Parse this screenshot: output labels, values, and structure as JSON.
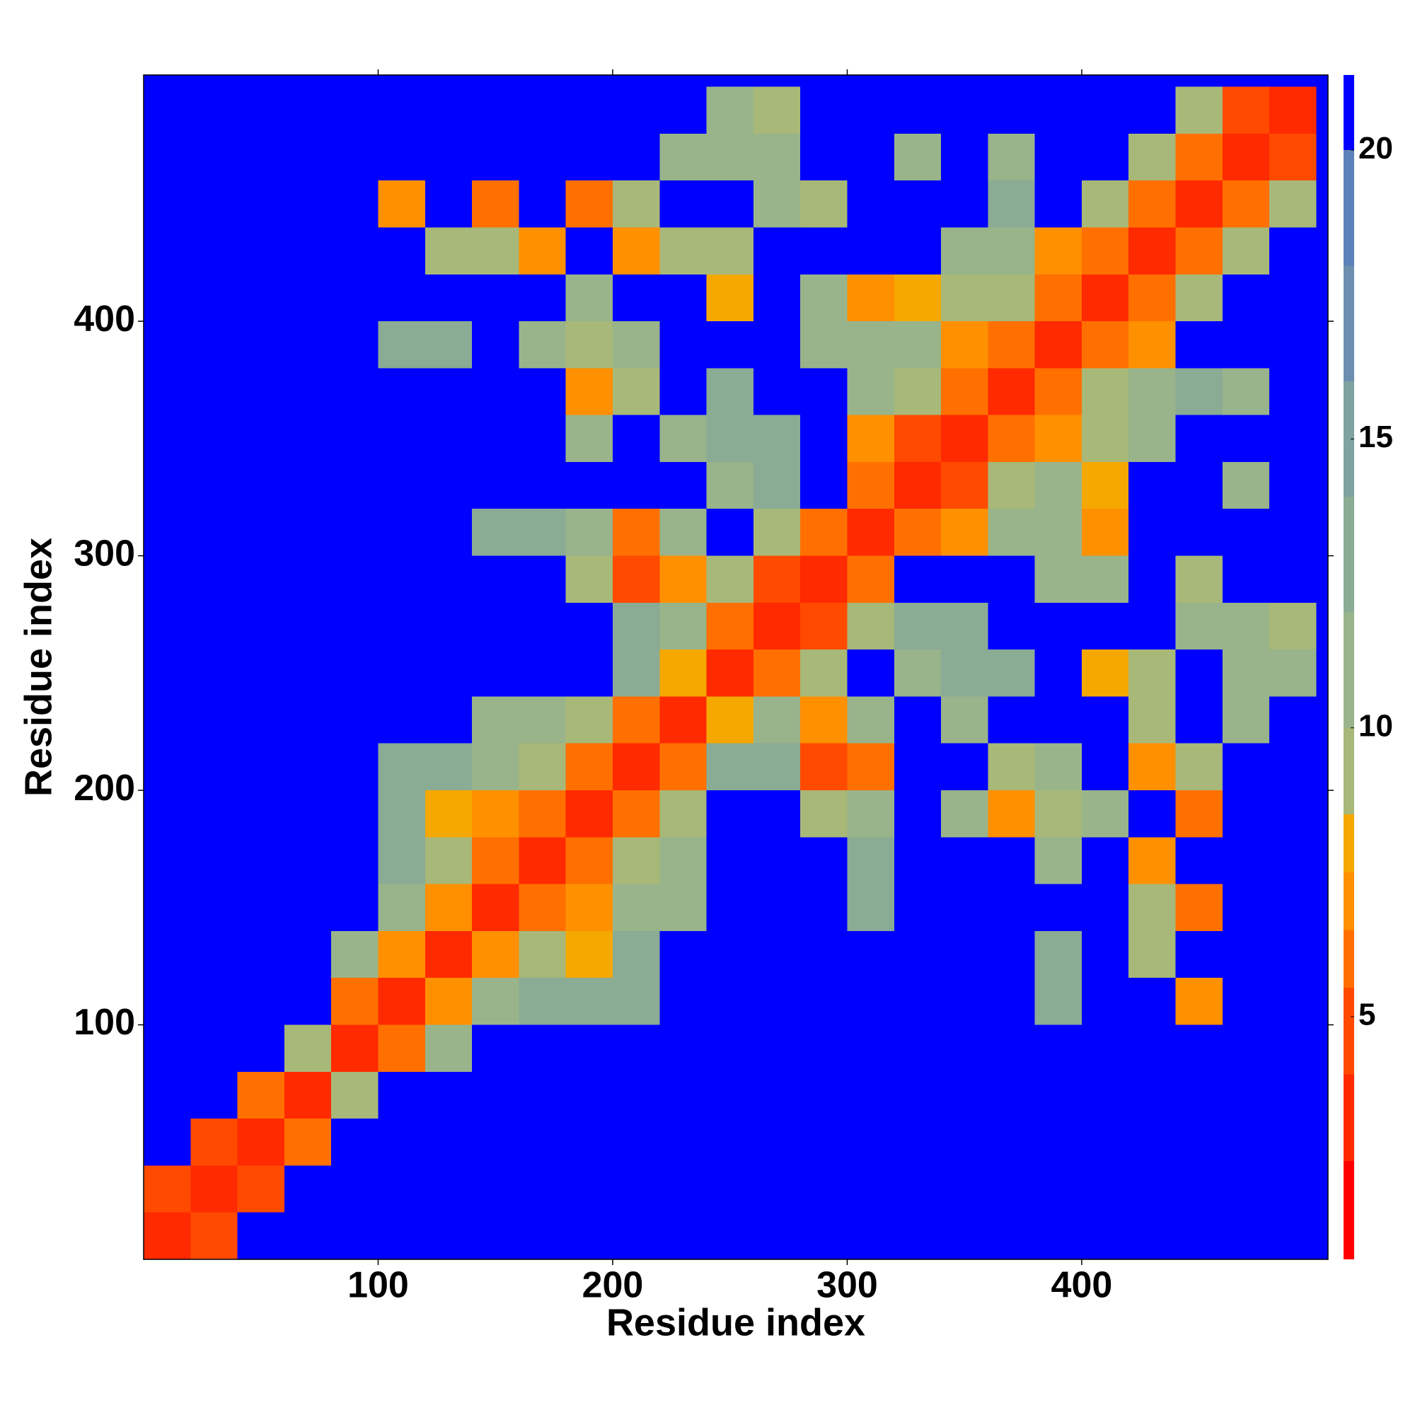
{
  "chart_data": {
    "type": "heatmap",
    "xlabel": "Residue index",
    "ylabel": "Residue index",
    "bins": [
      0,
      20,
      40,
      60,
      80,
      100,
      120,
      140,
      160,
      180,
      200,
      220,
      240,
      260,
      280,
      300,
      320,
      340,
      360,
      380,
      400,
      420,
      440,
      460,
      480,
      500
    ],
    "xlim": [
      0,
      505
    ],
    "ylim": [
      0,
      505
    ],
    "xticks": [
      100,
      200,
      300,
      400
    ],
    "yticks": [
      100,
      200,
      300,
      400
    ],
    "z": [
      [
        3,
        5,
        21,
        21,
        21,
        21,
        21,
        21,
        21,
        21,
        21,
        21,
        21,
        21,
        21,
        21,
        21,
        21,
        21,
        21,
        21,
        21,
        21,
        21,
        21
      ],
      [
        5,
        3,
        5,
        21,
        21,
        21,
        21,
        21,
        21,
        21,
        21,
        21,
        21,
        21,
        21,
        21,
        21,
        21,
        21,
        21,
        21,
        21,
        21,
        21,
        21
      ],
      [
        21,
        5,
        3,
        6,
        21,
        21,
        21,
        21,
        21,
        21,
        21,
        21,
        21,
        21,
        21,
        21,
        21,
        21,
        21,
        21,
        21,
        21,
        21,
        21,
        21
      ],
      [
        21,
        21,
        6,
        3,
        9,
        21,
        21,
        21,
        21,
        21,
        21,
        21,
        21,
        21,
        21,
        21,
        21,
        21,
        21,
        21,
        21,
        21,
        21,
        21,
        21
      ],
      [
        21,
        21,
        21,
        9,
        3,
        6,
        11,
        21,
        21,
        21,
        21,
        21,
        21,
        21,
        21,
        21,
        21,
        21,
        21,
        21,
        21,
        21,
        21,
        21,
        21
      ],
      [
        21,
        21,
        21,
        21,
        6,
        3,
        7,
        12,
        14,
        13,
        13,
        21,
        21,
        21,
        21,
        21,
        21,
        21,
        21,
        13,
        21,
        21,
        7,
        21,
        21
      ],
      [
        21,
        21,
        21,
        21,
        11,
        7,
        3,
        7,
        10,
        8,
        13,
        21,
        21,
        21,
        21,
        21,
        21,
        21,
        21,
        13,
        21,
        10,
        21,
        21,
        21
      ],
      [
        21,
        21,
        21,
        21,
        21,
        12,
        7,
        3,
        6,
        7,
        11,
        12,
        21,
        21,
        21,
        14,
        21,
        21,
        21,
        21,
        21,
        9,
        6,
        21,
        21
      ],
      [
        21,
        21,
        21,
        21,
        21,
        14,
        10,
        6,
        3,
        6,
        9,
        12,
        21,
        21,
        21,
        13,
        21,
        21,
        21,
        12,
        21,
        7,
        21,
        21,
        21
      ],
      [
        21,
        21,
        21,
        21,
        21,
        13,
        8,
        7,
        6,
        3,
        6,
        10,
        21,
        21,
        10,
        11,
        21,
        12,
        7,
        10,
        12,
        21,
        6,
        21,
        21
      ],
      [
        21,
        21,
        21,
        21,
        21,
        13,
        13,
        11,
        9,
        6,
        3,
        6,
        14,
        13,
        5,
        6,
        21,
        21,
        10,
        11,
        21,
        7,
        10,
        21,
        21
      ],
      [
        21,
        21,
        21,
        21,
        21,
        21,
        21,
        12,
        12,
        10,
        6,
        3,
        8,
        11,
        7,
        11,
        21,
        12,
        21,
        21,
        21,
        9,
        21,
        11,
        21
      ],
      [
        21,
        21,
        21,
        21,
        21,
        21,
        21,
        21,
        21,
        21,
        14,
        8,
        3,
        6,
        10,
        21,
        12,
        13,
        13,
        21,
        8,
        10,
        21,
        12,
        11
      ],
      [
        21,
        21,
        21,
        21,
        21,
        21,
        21,
        21,
        21,
        21,
        13,
        11,
        6,
        3,
        5,
        9,
        13,
        13,
        21,
        21,
        21,
        21,
        11,
        11,
        10
      ],
      [
        21,
        21,
        21,
        21,
        21,
        21,
        21,
        21,
        21,
        10,
        5,
        7,
        10,
        5,
        3,
        6,
        21,
        21,
        21,
        11,
        12,
        21,
        10,
        21,
        21
      ],
      [
        21,
        21,
        21,
        21,
        21,
        21,
        21,
        14,
        13,
        11,
        6,
        11,
        21,
        9,
        6,
        3,
        6,
        7,
        11,
        12,
        7,
        21,
        21,
        21,
        21
      ],
      [
        21,
        21,
        21,
        21,
        21,
        21,
        21,
        21,
        21,
        21,
        21,
        21,
        12,
        13,
        21,
        6,
        3,
        5,
        9,
        11,
        8,
        21,
        21,
        12,
        21
      ],
      [
        21,
        21,
        21,
        21,
        21,
        21,
        21,
        21,
        21,
        12,
        21,
        12,
        13,
        13,
        21,
        7,
        5,
        3,
        6,
        7,
        10,
        12,
        21,
        21,
        21
      ],
      [
        21,
        21,
        21,
        21,
        21,
        21,
        21,
        21,
        21,
        7,
        10,
        21,
        13,
        21,
        21,
        11,
        9,
        6,
        3,
        6,
        9,
        11,
        13,
        12,
        21
      ],
      [
        21,
        21,
        21,
        21,
        21,
        13,
        13,
        21,
        12,
        10,
        11,
        21,
        21,
        21,
        11,
        12,
        11,
        7,
        6,
        3,
        6,
        7,
        21,
        21,
        21
      ],
      [
        21,
        21,
        21,
        21,
        21,
        21,
        21,
        21,
        21,
        12,
        21,
        21,
        8,
        21,
        12,
        7,
        8,
        10,
        9,
        6,
        3,
        6,
        9,
        21,
        21
      ],
      [
        21,
        21,
        21,
        21,
        21,
        21,
        10,
        9,
        7,
        21,
        7,
        9,
        10,
        21,
        21,
        21,
        21,
        12,
        11,
        7,
        6,
        3,
        6,
        9,
        21
      ],
      [
        21,
        21,
        21,
        21,
        21,
        7,
        21,
        6,
        21,
        6,
        10,
        21,
        21,
        11,
        10,
        21,
        21,
        21,
        13,
        21,
        9,
        6,
        3,
        6,
        10
      ],
      [
        21,
        21,
        21,
        21,
        21,
        21,
        21,
        21,
        21,
        21,
        21,
        11,
        12,
        11,
        21,
        21,
        12,
        21,
        12,
        21,
        21,
        9,
        6,
        3,
        5
      ],
      [
        21,
        21,
        21,
        21,
        21,
        21,
        21,
        21,
        21,
        21,
        21,
        21,
        11,
        10,
        21,
        21,
        21,
        21,
        21,
        21,
        21,
        21,
        10,
        5,
        3
      ]
    ],
    "colorbar": {
      "lim": [
        0.8,
        21.3
      ],
      "ticks": [
        5,
        10,
        15,
        20
      ],
      "bands": [
        {
          "max": 2.5,
          "color": "#ff0000"
        },
        {
          "max": 4,
          "color": "#ff2a00"
        },
        {
          "max": 5.5,
          "color": "#ff4a00"
        },
        {
          "max": 6.5,
          "color": "#ff7000"
        },
        {
          "max": 7.5,
          "color": "#ff9000"
        },
        {
          "max": 8.5,
          "color": "#f5a800"
        },
        {
          "max": 10,
          "color": "#a8b878"
        },
        {
          "max": 12,
          "color": "#99b48a"
        },
        {
          "max": 14,
          "color": "#8aab94"
        },
        {
          "max": 16,
          "color": "#7fa3a0"
        },
        {
          "max": 18,
          "color": "#6c8fb0"
        },
        {
          "max": 20,
          "color": "#5b82b8"
        },
        {
          "max": 21.3,
          "color": "#0000ff"
        }
      ]
    }
  }
}
